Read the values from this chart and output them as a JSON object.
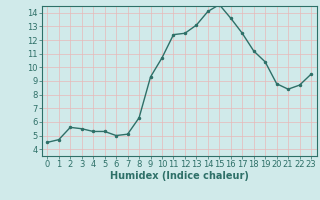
{
  "xlabel": "Humidex (Indice chaleur)",
  "x": [
    0,
    1,
    2,
    3,
    4,
    5,
    6,
    7,
    8,
    9,
    10,
    11,
    12,
    13,
    14,
    15,
    16,
    17,
    18,
    19,
    20,
    21,
    22,
    23
  ],
  "y": [
    4.5,
    4.7,
    5.6,
    5.5,
    5.3,
    5.3,
    5.0,
    5.1,
    6.3,
    9.3,
    10.7,
    12.4,
    12.5,
    13.1,
    14.1,
    14.6,
    13.6,
    12.5,
    11.2,
    10.4,
    8.8,
    8.4,
    8.7,
    9.5
  ],
  "line_color": "#2e7068",
  "marker_color": "#2e7068",
  "bg_color": "#d0eaea",
  "grid_color": "#e8b8b8",
  "axis_color": "#2e7068",
  "tick_color": "#2e7068",
  "ylim": [
    3.5,
    14.5
  ],
  "xlim": [
    -0.5,
    23.5
  ],
  "yticks": [
    4,
    5,
    6,
    7,
    8,
    9,
    10,
    11,
    12,
    13,
    14
  ],
  "xticks": [
    0,
    1,
    2,
    3,
    4,
    5,
    6,
    7,
    8,
    9,
    10,
    11,
    12,
    13,
    14,
    15,
    16,
    17,
    18,
    19,
    20,
    21,
    22,
    23
  ],
  "xlabel_fontsize": 7,
  "tick_fontsize": 6,
  "marker_size": 3,
  "line_width": 1.0
}
